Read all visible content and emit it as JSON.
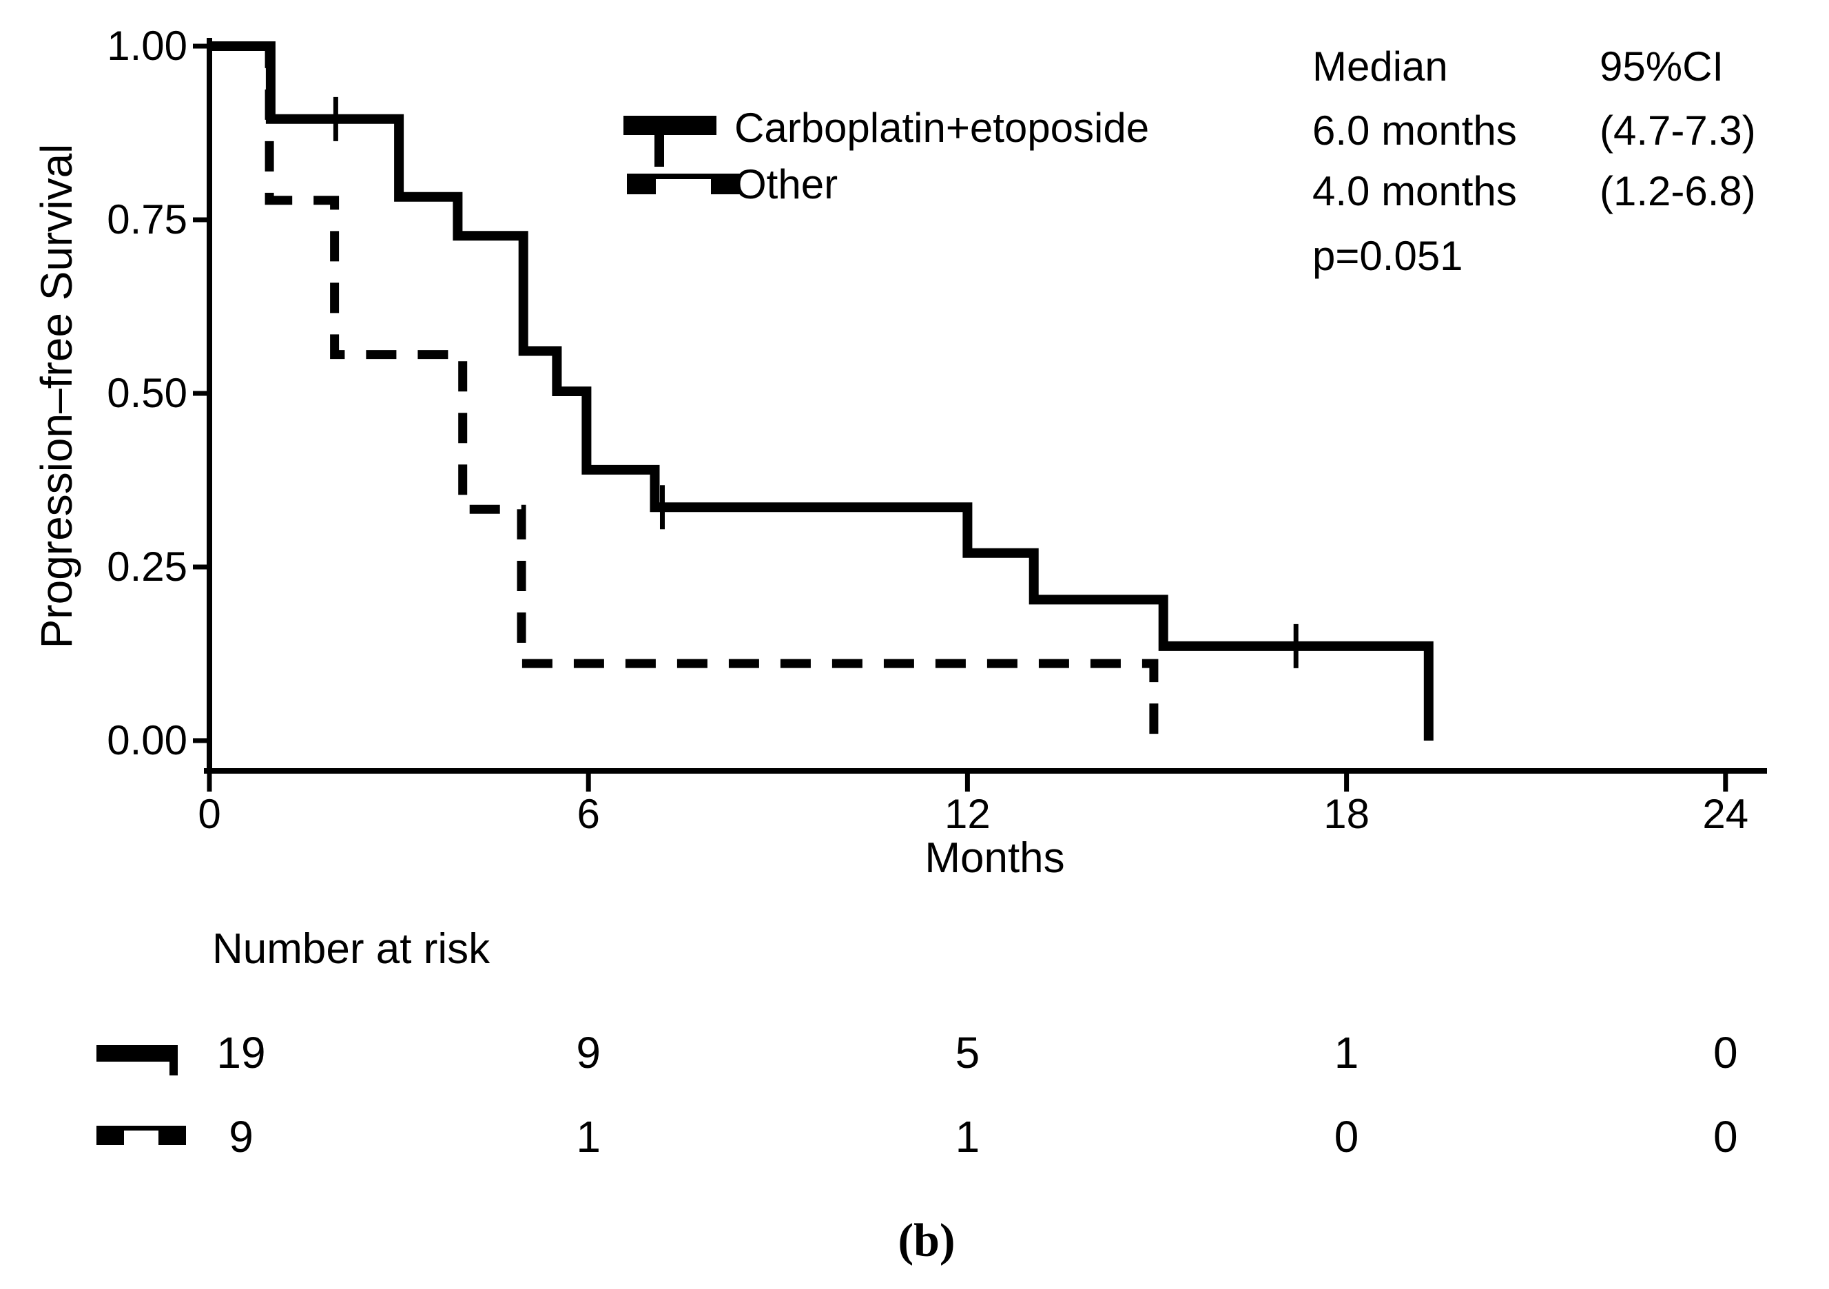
{
  "figure": {
    "caption": "(b)",
    "background_color": "#ffffff",
    "ink_color": "#000000"
  },
  "chart_data": {
    "type": "line",
    "subtype": "kaplan-meier-step-curve",
    "title": "",
    "xlabel": "Months",
    "ylabel": "Progression–free Survival",
    "xlim": [
      0,
      24.7
    ],
    "ylim": [
      0,
      1
    ],
    "grid": false,
    "legend_position": "inside-top-center",
    "xticks": {
      "values": [
        0,
        6,
        12,
        18,
        24
      ],
      "labels": [
        "0",
        "6",
        "12",
        "18",
        "24"
      ]
    },
    "yticks": {
      "values": [
        1.0,
        0.75,
        0.5,
        0.25,
        0.0
      ],
      "labels": [
        "1.00",
        "0.75",
        "0.50",
        "0.25",
        "0.00"
      ]
    },
    "series": [
      {
        "name": "Carboplatin+etoposide",
        "line_style": "solid",
        "color": "#000000",
        "steps": [
          [
            0,
            1.0
          ],
          [
            0.97,
            1.0
          ],
          [
            0.97,
            0.895
          ],
          [
            3.0,
            0.895
          ],
          [
            3.0,
            0.783
          ],
          [
            3.93,
            0.783
          ],
          [
            3.93,
            0.727
          ],
          [
            4.97,
            0.727
          ],
          [
            4.97,
            0.561
          ],
          [
            5.5,
            0.561
          ],
          [
            5.5,
            0.503
          ],
          [
            5.97,
            0.503
          ],
          [
            5.97,
            0.39
          ],
          [
            7.05,
            0.39
          ],
          [
            7.05,
            0.336
          ],
          [
            12.0,
            0.336
          ],
          [
            12.0,
            0.27
          ],
          [
            13.05,
            0.27
          ],
          [
            13.05,
            0.203
          ],
          [
            15.1,
            0.203
          ],
          [
            15.1,
            0.136
          ],
          [
            19.3,
            0.136
          ],
          [
            19.3,
            0.0
          ]
        ],
        "censor_marks": [
          [
            2.0,
            0.895
          ],
          [
            7.17,
            0.336
          ],
          [
            17.2,
            0.136
          ]
        ],
        "median": "6.0 months",
        "ci_95": "(4.7-7.3)"
      },
      {
        "name": "Other",
        "line_style": "dashed",
        "color": "#000000",
        "steps": [
          [
            0,
            1.0
          ],
          [
            0.95,
            1.0
          ],
          [
            0.95,
            0.778
          ],
          [
            1.98,
            0.778
          ],
          [
            1.98,
            0.556
          ],
          [
            4.01,
            0.556
          ],
          [
            4.01,
            0.333
          ],
          [
            4.94,
            0.333
          ],
          [
            4.94,
            0.111
          ],
          [
            14.95,
            0.111
          ],
          [
            14.95,
            0.0
          ]
        ],
        "censor_marks": [],
        "median": "4.0 months",
        "ci_95": "(1.2-6.8)"
      }
    ],
    "stats": {
      "col1_header": "Median",
      "col2_header": "95%CI",
      "p_value": "p=0.051"
    },
    "at_risk": {
      "title": "Number at risk",
      "times": [
        0,
        6,
        12,
        18,
        24
      ],
      "rows": [
        {
          "series": "Carboplatin+etoposide",
          "counts": [
            "19",
            "9",
            "5",
            "1",
            "0"
          ]
        },
        {
          "series": "Other",
          "counts": [
            "9",
            "1",
            "1",
            "0",
            "0"
          ]
        }
      ]
    }
  }
}
